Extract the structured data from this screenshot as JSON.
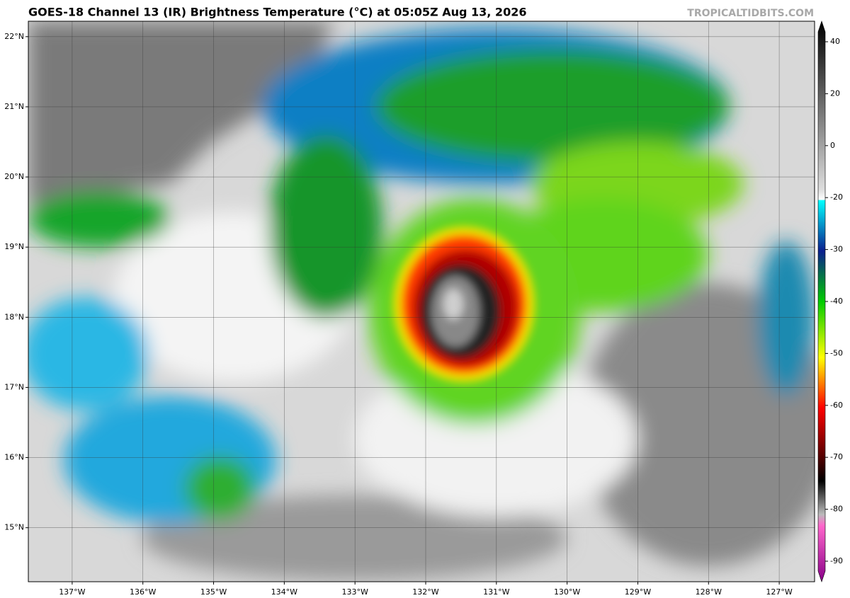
{
  "header": {
    "title": "GOES-18 Channel 13 (IR) Brightness Temperature (°C) at 05:05Z Aug 13, 2026",
    "watermark": "TROPICALTIDBITS.COM"
  },
  "map": {
    "xlim": [
      -137.62,
      -126.5
    ],
    "ylim": [
      14.23,
      22.22
    ],
    "lon_ticks": [
      {
        "value": -137,
        "label": "137°W"
      },
      {
        "value": -136,
        "label": "136°W"
      },
      {
        "value": -135,
        "label": "135°W"
      },
      {
        "value": -134,
        "label": "134°W"
      },
      {
        "value": -133,
        "label": "133°W"
      },
      {
        "value": -132,
        "label": "132°W"
      },
      {
        "value": -131,
        "label": "131°W"
      },
      {
        "value": -130,
        "label": "130°W"
      },
      {
        "value": -129,
        "label": "129°W"
      },
      {
        "value": -128,
        "label": "128°W"
      },
      {
        "value": -127,
        "label": "127°W"
      }
    ],
    "lat_ticks": [
      {
        "value": 22,
        "label": "22°N"
      },
      {
        "value": 21,
        "label": "21°N"
      },
      {
        "value": 20,
        "label": "20°N"
      },
      {
        "value": 19,
        "label": "19°N"
      },
      {
        "value": 18,
        "label": "18°N"
      },
      {
        "value": 17,
        "label": "17°N"
      },
      {
        "value": 16,
        "label": "16°N"
      },
      {
        "value": 15,
        "label": "15°N"
      }
    ],
    "grid": true
  },
  "colorbar": {
    "ticks": [
      40,
      20,
      0,
      -20,
      -30,
      -40,
      -50,
      -60,
      -70,
      -80,
      -90
    ]
  }
}
